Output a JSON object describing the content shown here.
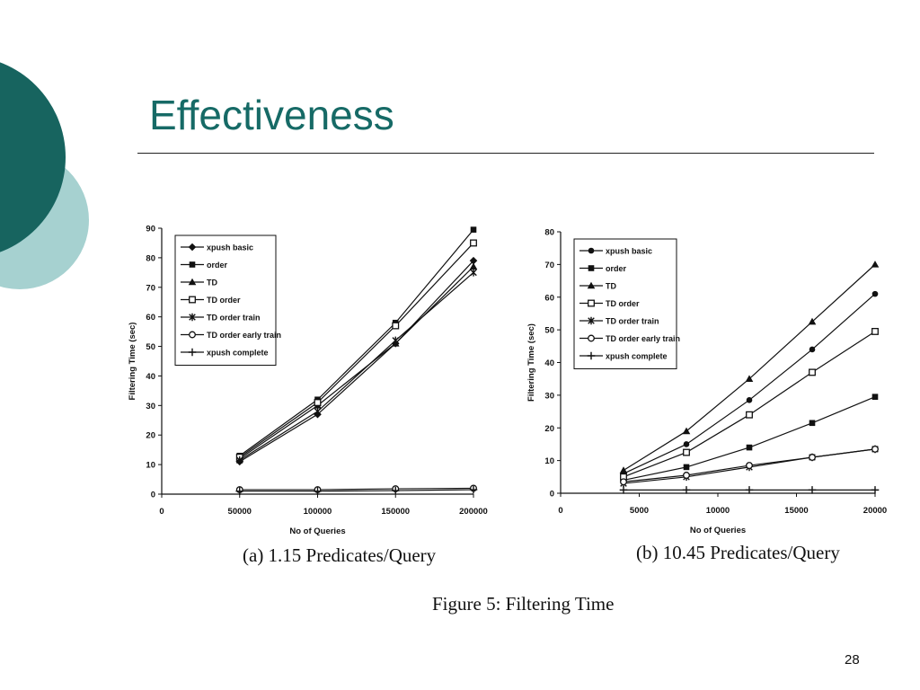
{
  "slide": {
    "title": "Effectiveness",
    "page_number": "28",
    "figure_caption": "Figure 5: Filtering Time",
    "colors": {
      "title": "#166a66",
      "dark_teal": "#17645f",
      "light_teal": "#a6d1d0",
      "line": "#111111"
    }
  },
  "chart_data": [
    {
      "id": "a",
      "type": "line",
      "caption": "(a) 1.15 Predicates/Query",
      "xlabel": "No of Queries",
      "ylabel": "Filtering Time (sec)",
      "xlim": [
        0,
        200000
      ],
      "ylim": [
        0,
        90
      ],
      "xticks": [
        0,
        50000,
        100000,
        150000,
        200000
      ],
      "yticks": [
        0,
        10,
        20,
        30,
        40,
        50,
        60,
        70,
        80,
        90
      ],
      "legend_position": "top-left",
      "x": [
        50000,
        100000,
        150000,
        200000
      ],
      "series": [
        {
          "name": "xpush basic",
          "marker": "diamond",
          "values": [
            11,
            27,
            51,
            79
          ]
        },
        {
          "name": "order",
          "marker": "square-filled",
          "values": [
            13,
            32,
            58,
            89.5
          ]
        },
        {
          "name": "TD",
          "marker": "triangle",
          "values": [
            12,
            30,
            51,
            77
          ]
        },
        {
          "name": "TD order",
          "marker": "square-open",
          "values": [
            12.5,
            31,
            57,
            85
          ]
        },
        {
          "name": "TD order train",
          "marker": "star",
          "values": [
            11.5,
            28,
            52,
            75
          ]
        },
        {
          "name": "TD order early train",
          "marker": "circle-open",
          "values": [
            1.5,
            1.5,
            1.8,
            2
          ]
        },
        {
          "name": "xpush complete",
          "marker": "plus",
          "values": [
            1,
            1,
            1.2,
            1.5
          ]
        }
      ]
    },
    {
      "id": "b",
      "type": "line",
      "caption": "(b) 10.45 Predicates/Query",
      "xlabel": "No of Queries",
      "ylabel": "Filtering Time (sec)",
      "xlim": [
        0,
        20000
      ],
      "ylim": [
        0,
        80
      ],
      "xticks": [
        0,
        5000,
        10000,
        15000,
        20000
      ],
      "yticks": [
        0,
        10,
        20,
        30,
        40,
        50,
        60,
        70,
        80
      ],
      "legend_position": "top-left",
      "x": [
        4000,
        8000,
        12000,
        16000,
        20000
      ],
      "series": [
        {
          "name": "xpush basic",
          "marker": "circle-filled",
          "values": [
            6,
            15,
            28.5,
            44,
            61
          ]
        },
        {
          "name": "order",
          "marker": "square-filled",
          "values": [
            4,
            8,
            14,
            21.5,
            29.5
          ]
        },
        {
          "name": "TD",
          "marker": "triangle",
          "values": [
            7,
            19,
            35,
            52.5,
            70
          ]
        },
        {
          "name": "TD order",
          "marker": "square-open",
          "values": [
            5,
            12.5,
            24,
            37,
            49.5
          ]
        },
        {
          "name": "TD order train",
          "marker": "star",
          "values": [
            3,
            5,
            8,
            11,
            13.5
          ]
        },
        {
          "name": "TD order early train",
          "marker": "circle-open",
          "values": [
            3.5,
            5.5,
            8.5,
            11,
            13.5
          ]
        },
        {
          "name": "xpush complete",
          "marker": "plus",
          "values": [
            1,
            1,
            1,
            1,
            1
          ]
        }
      ]
    }
  ]
}
